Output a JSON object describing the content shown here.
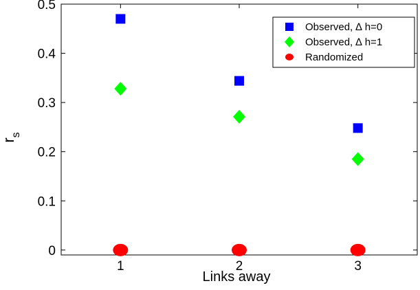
{
  "chart_data": {
    "type": "scatter",
    "xlabel": "Links away",
    "ylabel_main": "r",
    "ylabel_sub": "s",
    "xlim": [
      0.5,
      3.5
    ],
    "ylim": [
      -0.01,
      0.5
    ],
    "x_ticks": [
      1,
      2,
      3
    ],
    "x_tick_labels": [
      "1",
      "2",
      "3"
    ],
    "y_ticks": [
      0,
      0.1,
      0.2,
      0.3,
      0.4,
      0.5
    ],
    "y_tick_labels": [
      "0",
      "0.1",
      "0.2",
      "0.3",
      "0.4",
      "0.5"
    ],
    "grid": false,
    "legend_position": "top-right",
    "series": [
      {
        "name": "Observed, ∆ h=0",
        "marker": "square",
        "color": "#0000ff",
        "x": [
          1,
          2,
          3
        ],
        "y": [
          0.47,
          0.344,
          0.248
        ]
      },
      {
        "name": "Observed, ∆ h=1",
        "marker": "diamond",
        "color": "#00ff00",
        "x": [
          1,
          2,
          3
        ],
        "y": [
          0.328,
          0.271,
          0.185
        ]
      },
      {
        "name": "Randomized",
        "marker": "circle",
        "color": "#ff0000",
        "x": [
          1,
          2,
          3
        ],
        "y": [
          0.0,
          0.0,
          0.0
        ]
      }
    ]
  }
}
